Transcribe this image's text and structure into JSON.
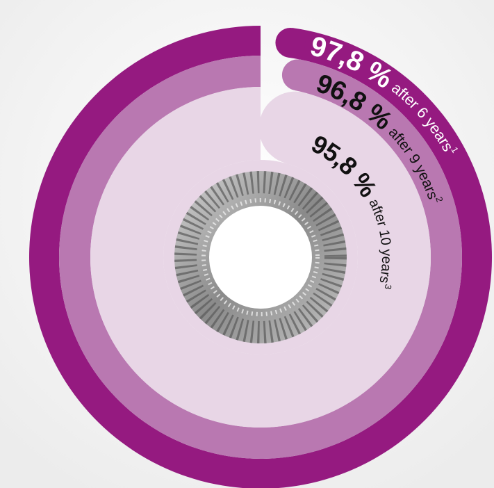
{
  "chart_data": {
    "type": "radial-bar",
    "categories": [
      "after 6 years",
      "after 9 years",
      "after 10 years"
    ],
    "footnote_marks": [
      "1",
      "2",
      "3"
    ],
    "values": [
      97.8,
      96.8,
      95.8
    ],
    "value_labels": [
      "97,8 %",
      "96,8 %",
      "95,8 %"
    ],
    "colors": [
      "#951a80",
      "#b978b1",
      "#e8d6e6"
    ],
    "label_colors": [
      "#ffffff",
      "#111111",
      "#111111"
    ],
    "rlim": [
      0,
      100
    ]
  }
}
